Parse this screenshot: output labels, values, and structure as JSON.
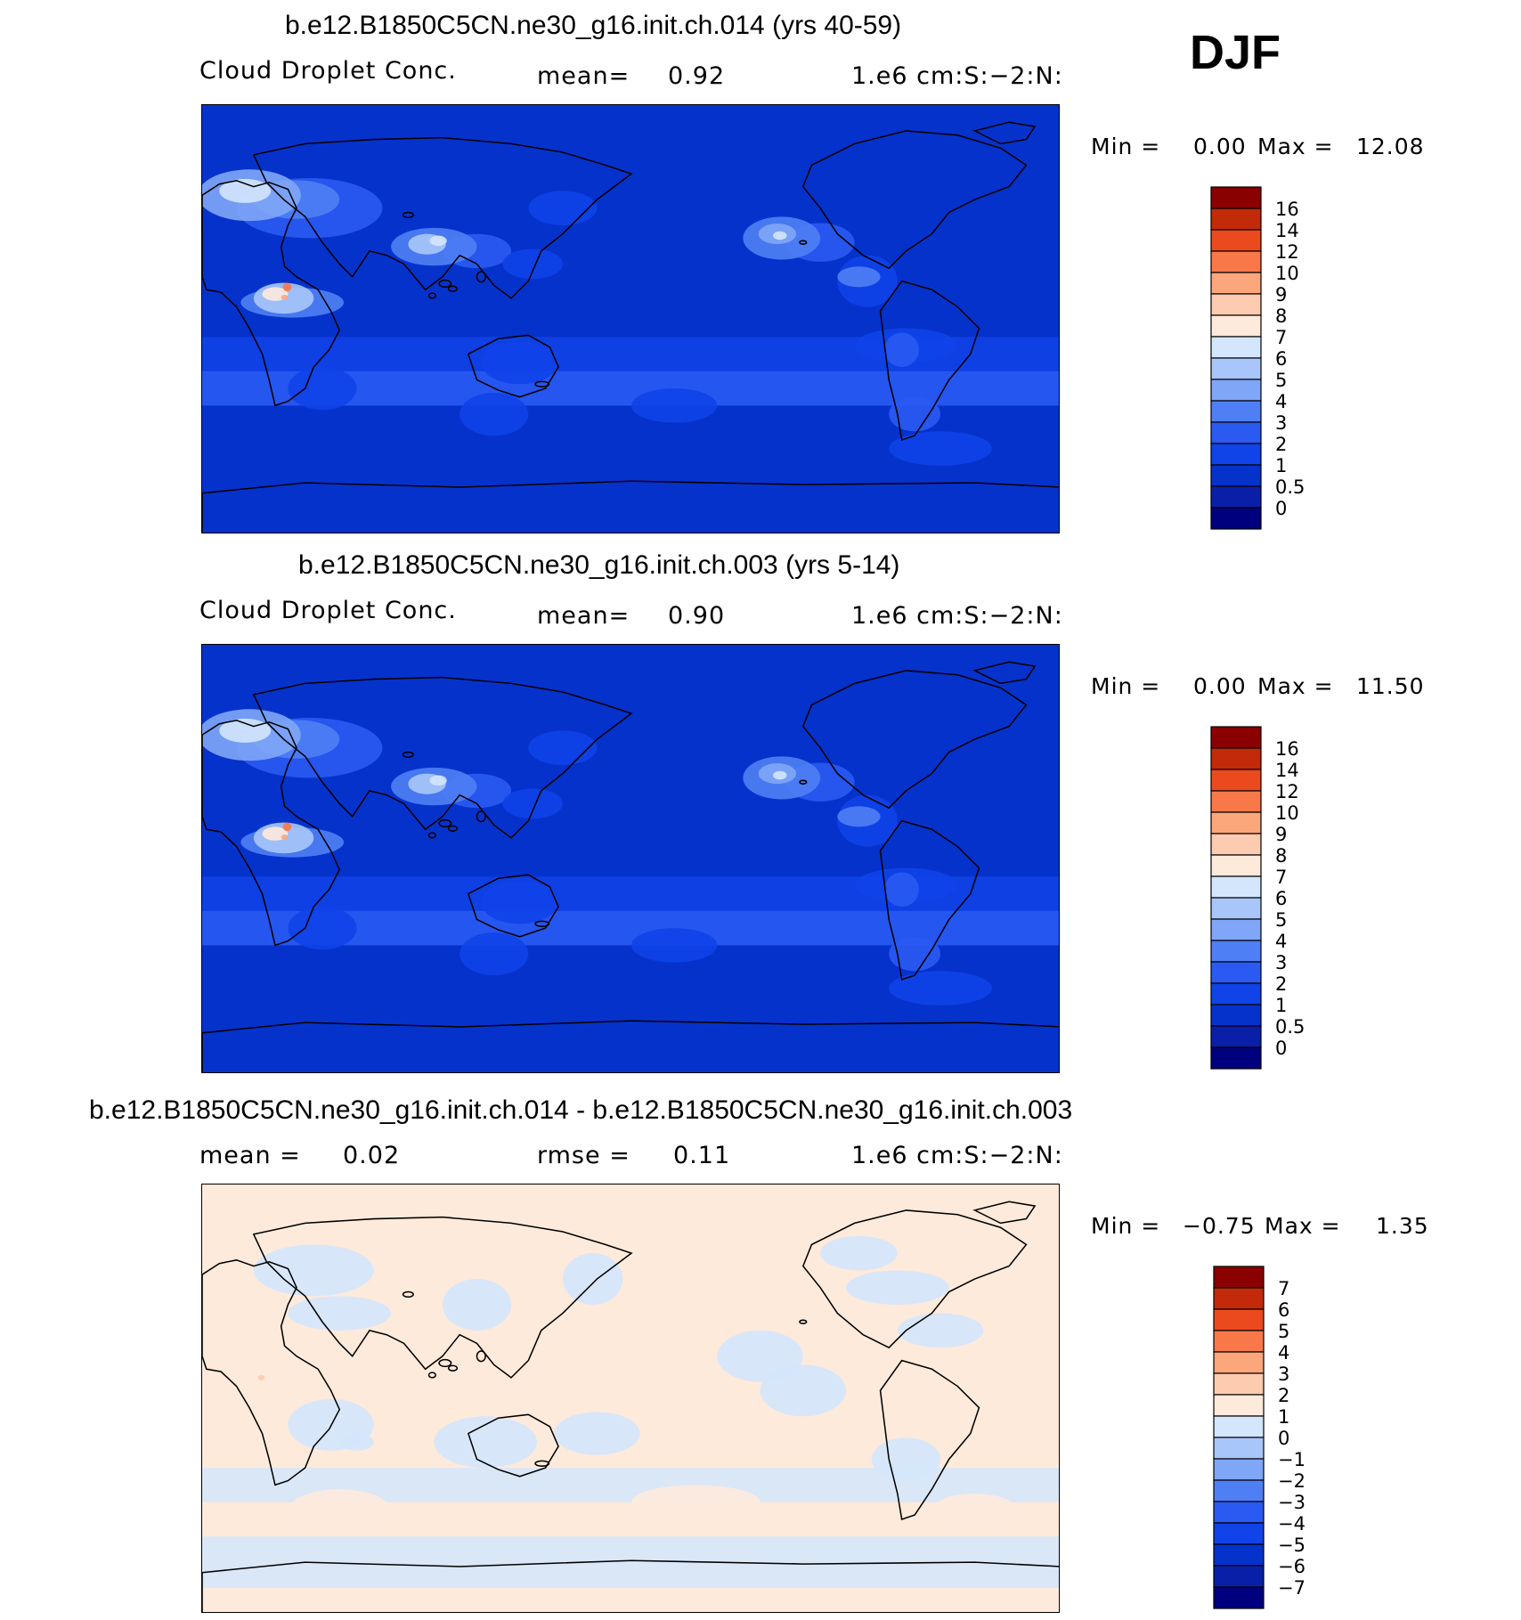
{
  "season": "DJF",
  "colors": {
    "abs_scale": [
      "#00007f",
      "#0a1fa8",
      "#0632cc",
      "#1043e8",
      "#2a5af2",
      "#4f7ff4",
      "#7fa6f7",
      "#a9c6fa",
      "#d4e6fc",
      "#fdeadb",
      "#fccbb0",
      "#fca67c",
      "#f8784a",
      "#eb4a1e",
      "#c22a0a",
      "#8b0000"
    ],
    "diff_scale": [
      "#00007f",
      "#0a1fa8",
      "#0632cc",
      "#1043e8",
      "#2a5af2",
      "#4f7ff4",
      "#7fa6f7",
      "#a9c6fa",
      "#d4e6fc",
      "#fdeadb",
      "#fccbb0",
      "#fca67c",
      "#f8784a",
      "#eb4a1e",
      "#c22a0a",
      "#8b0000"
    ]
  },
  "panels": [
    {
      "title": "b.e12.B1850C5CN.ne30_g16.init.ch.014 (yrs 40-59)",
      "left_label": "Cloud Droplet Conc.",
      "mid_label": "mean=",
      "mid_value": "0.92",
      "right_label": "1.e6 cm:S:−2:N:",
      "min_label": "Min =",
      "min_value": "0.00",
      "max_label": "Max =",
      "max_value": "12.08",
      "colorbar_labels": [
        "16",
        "14",
        "12",
        "10",
        "9",
        "8",
        "7",
        "6",
        "5",
        "4",
        "3",
        "2",
        "1",
        "0.5",
        "0"
      ],
      "field_type": "abs"
    },
    {
      "title": "b.e12.B1850C5CN.ne30_g16.init.ch.003 (yrs 5-14)",
      "left_label": "Cloud Droplet Conc.",
      "mid_label": "mean=",
      "mid_value": "0.90",
      "right_label": "1.e6 cm:S:−2:N:",
      "min_label": "Min =",
      "min_value": "0.00",
      "max_label": "Max =",
      "max_value": "11.50",
      "colorbar_labels": [
        "16",
        "14",
        "12",
        "10",
        "9",
        "8",
        "7",
        "6",
        "5",
        "4",
        "3",
        "2",
        "1",
        "0.5",
        "0"
      ],
      "field_type": "abs"
    },
    {
      "title": "b.e12.B1850C5CN.ne30_g16.init.ch.014 - b.e12.B1850C5CN.ne30_g16.init.ch.003",
      "left_label": "mean =",
      "left_value": "0.02",
      "mid_label": "rmse =",
      "mid_value": "0.11",
      "right_label": "1.e6 cm:S:−2:N:",
      "min_label": "Min =",
      "min_value": "−0.75",
      "max_label": "Max =",
      "max_value": "1.35",
      "colorbar_labels": [
        "7",
        "6",
        "5",
        "4",
        "3",
        "2",
        "1",
        "0",
        "−1",
        "−2",
        "−3",
        "−4",
        "−5",
        "−6",
        "−7"
      ],
      "field_type": "diff"
    }
  ]
}
